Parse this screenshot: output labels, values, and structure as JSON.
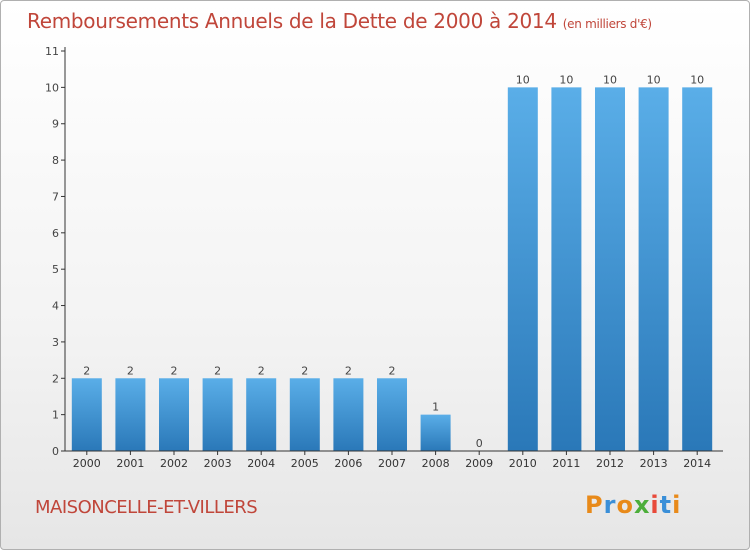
{
  "header": {
    "title": "Remboursements Annuels de la Dette de 2000 à 2014",
    "subtitle": "(en milliers d'€)"
  },
  "footer": {
    "commune": "MAISONCELLE-ET-VILLERS",
    "logo_text": "Proxiti",
    "logo_colors": [
      "#e88a1a",
      "#3a8fd8",
      "#e88a1a",
      "#4cae3a",
      "#e84a3a",
      "#3a8fd8",
      "#e88a1a"
    ]
  },
  "colors": {
    "title": "#c0463a",
    "bar_light": "#5aaee8",
    "bar_dark": "#2a78b8",
    "axis": "#333333",
    "grid": "#dddddd"
  },
  "chart_data": {
    "type": "bar",
    "title": "Remboursements Annuels de la Dette de 2000 à 2014",
    "subtitle": "(en milliers d'€)",
    "categories": [
      "2000",
      "2001",
      "2002",
      "2003",
      "2004",
      "2005",
      "2006",
      "2007",
      "2008",
      "2009",
      "2010",
      "2011",
      "2012",
      "2013",
      "2014"
    ],
    "values": [
      2,
      2,
      2,
      2,
      2,
      2,
      2,
      2,
      1,
      0,
      10,
      10,
      10,
      10,
      10
    ],
    "ylim": [
      0,
      11
    ],
    "yticks": [
      0,
      1,
      2,
      3,
      4,
      5,
      6,
      7,
      8,
      9,
      10,
      11
    ],
    "xlabel": "",
    "ylabel": "",
    "grid": false,
    "legend": "none"
  }
}
